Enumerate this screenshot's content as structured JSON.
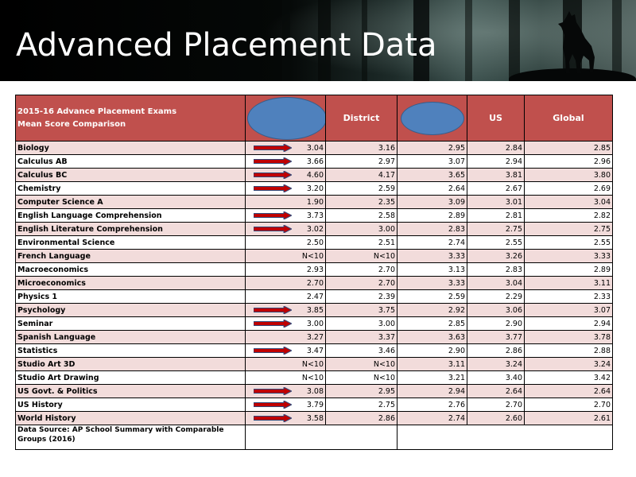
{
  "slide": {
    "title": "Advanced Placement Data"
  },
  "table": {
    "header": {
      "title_line1": "2015-16 Advance Placement Exams",
      "title_line2": "Mean Score Comparison",
      "district": "District",
      "us": "US",
      "global": "Global"
    },
    "rows": [
      {
        "subject": "Biology",
        "school": "3.04",
        "district": "3.16",
        "state": "2.95",
        "us": "2.84",
        "global": "2.85",
        "arrow": true
      },
      {
        "subject": "Calculus AB",
        "school": "3.66",
        "district": "2.97",
        "state": "3.07",
        "us": "2.94",
        "global": "2.96",
        "arrow": true
      },
      {
        "subject": "Calculus BC",
        "school": "4.60",
        "district": "4.17",
        "state": "3.65",
        "us": "3.81",
        "global": "3.80",
        "arrow": true
      },
      {
        "subject": "Chemistry",
        "school": "3.20",
        "district": "2.59",
        "state": "2.64",
        "us": "2.67",
        "global": "2.69",
        "arrow": true
      },
      {
        "subject": "Computer Science A",
        "school": "1.90",
        "district": "2.35",
        "state": "3.09",
        "us": "3.01",
        "global": "3.04",
        "arrow": false
      },
      {
        "subject": "English Language Comprehension",
        "school": "3.73",
        "district": "2.58",
        "state": "2.89",
        "us": "2.81",
        "global": "2.82",
        "arrow": true
      },
      {
        "subject": "English Literature Comprehension",
        "school": "3.02",
        "district": "3.00",
        "state": "2.83",
        "us": "2.75",
        "global": "2.75",
        "arrow": true
      },
      {
        "subject": "Environmental Science",
        "school": "2.50",
        "district": "2.51",
        "state": "2.74",
        "us": "2.55",
        "global": "2.55",
        "arrow": false
      },
      {
        "subject": "French Language",
        "school": "N<10",
        "district": "N<10",
        "state": "3.33",
        "us": "3.26",
        "global": "3.33",
        "arrow": false
      },
      {
        "subject": "Macroeconomics",
        "school": "2.93",
        "district": "2.70",
        "state": "3.13",
        "us": "2.83",
        "global": "2.89",
        "arrow": false
      },
      {
        "subject": "Microeconomics",
        "school": "2.70",
        "district": "2.70",
        "state": "3.33",
        "us": "3.04",
        "global": "3.11",
        "arrow": false
      },
      {
        "subject": "Physics 1",
        "school": "2.47",
        "district": "2.39",
        "state": "2.59",
        "us": "2.29",
        "global": "2.33",
        "arrow": false
      },
      {
        "subject": "Psychology",
        "school": "3.85",
        "district": "3.75",
        "state": "2.92",
        "us": "3.06",
        "global": "3.07",
        "arrow": true
      },
      {
        "subject": "Seminar",
        "school": "3.00",
        "district": "3.00",
        "state": "2.85",
        "us": "2.90",
        "global": "2.94",
        "arrow": true
      },
      {
        "subject": "Spanish Language",
        "school": "3.27",
        "district": "3.37",
        "state": "3.63",
        "us": "3.77",
        "global": "3.78",
        "arrow": false
      },
      {
        "subject": "Statistics",
        "school": "3.47",
        "district": "3.46",
        "state": "2.90",
        "us": "2.86",
        "global": "2.88",
        "arrow": true
      },
      {
        "subject": "Studio Art 3D",
        "school": "N<10",
        "district": "N<10",
        "state": "3.11",
        "us": "3.24",
        "global": "3.24",
        "arrow": false
      },
      {
        "subject": "Studio Art Drawing",
        "school": "N<10",
        "district": "N<10",
        "state": "3.21",
        "us": "3.40",
        "global": "3.42",
        "arrow": false
      },
      {
        "subject": "US Govt. & Politics",
        "school": "3.08",
        "district": "2.95",
        "state": "2.94",
        "us": "2.64",
        "global": "2.64",
        "arrow": true
      },
      {
        "subject": "US History",
        "school": "3.79",
        "district": "2.75",
        "state": "2.76",
        "us": "2.70",
        "global": "2.70",
        "arrow": true
      },
      {
        "subject": "World History",
        "school": "3.58",
        "district": "2.86",
        "state": "2.74",
        "us": "2.60",
        "global": "2.61",
        "arrow": true
      }
    ],
    "footer": "Data Source: AP School Summary with Comparable Groups (2016)"
  },
  "colors": {
    "header_bg": "#c0504d",
    "alt_row_bg": "#f2dcdb",
    "oval_fill": "#4f81bd",
    "arrow_fill": "#c00000"
  },
  "icons": {
    "row_marker": "right-arrow-icon",
    "redaction": "blue-oval-shape",
    "banner_image": "wolf-forest-icon"
  }
}
